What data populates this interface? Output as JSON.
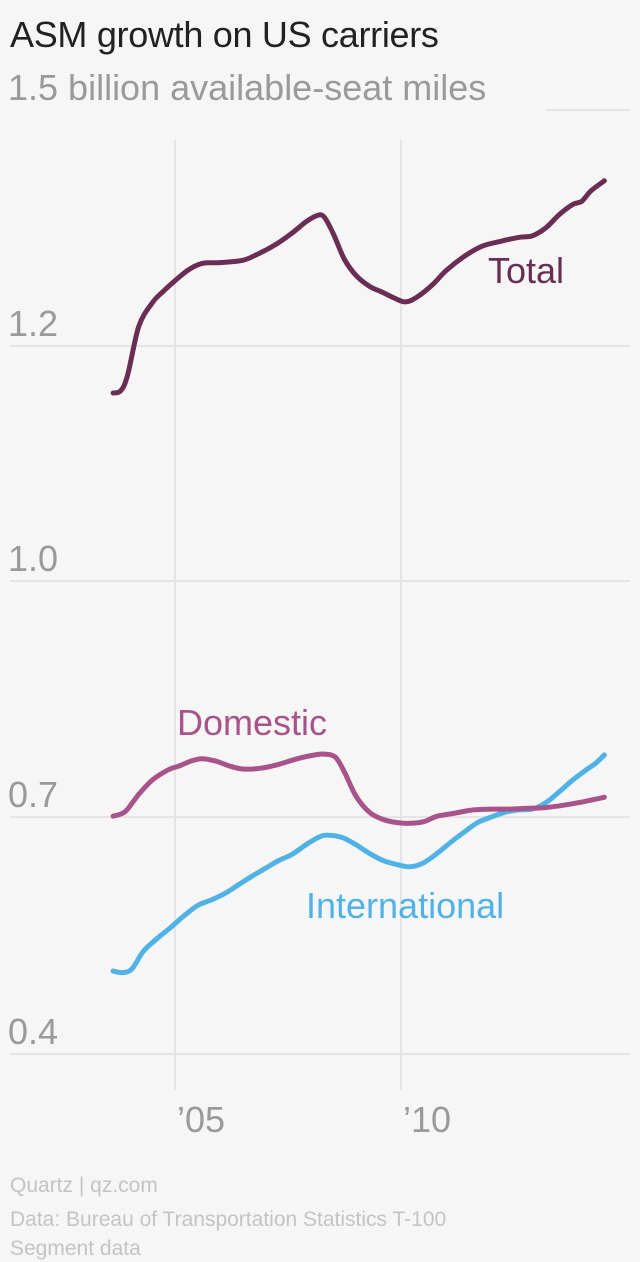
{
  "title": "ASM growth on US carriers",
  "footer": {
    "credit": "Quartz | qz.com",
    "source_line1": "Data: Bureau of Transportation Statistics T-100",
    "source_line2": "Segment data"
  },
  "colors": {
    "total": "#6a2e55",
    "domestic": "#a8548a",
    "international": "#51b2e5",
    "grid": "#e4e4e4",
    "axis_text": "#9a9a9a"
  },
  "chart_data": {
    "type": "line",
    "title": "ASM growth on US carriers",
    "ylabel": "",
    "xlabel": "",
    "y_ticks": [
      {
        "value": 0.4,
        "label": "0.4"
      },
      {
        "value": 0.7,
        "label": "0.7"
      },
      {
        "value": 1.0,
        "label": "1.0"
      },
      {
        "value": 1.2,
        "label": "1.2"
      },
      {
        "value": 1.5,
        "label": "1.5 billion available-seat miles"
      }
    ],
    "x_ticks": [
      {
        "value": 2005,
        "label": "’05"
      },
      {
        "value": 2010,
        "label": "’10"
      }
    ],
    "xlim": [
      2003.4,
      2014.7
    ],
    "grid": true,
    "series": [
      {
        "name": "Total",
        "color": "#6a2e55",
        "points": [
          [
            2003.63,
            1.16
          ],
          [
            2003.8,
            1.162
          ],
          [
            2003.95,
            1.175
          ],
          [
            2004.2,
            1.225
          ],
          [
            2004.5,
            1.255
          ],
          [
            2004.75,
            1.27
          ],
          [
            2005.0,
            1.283
          ],
          [
            2005.3,
            1.297
          ],
          [
            2005.6,
            1.305
          ],
          [
            2006.0,
            1.306
          ],
          [
            2006.5,
            1.309
          ],
          [
            2006.8,
            1.316
          ],
          [
            2007.2,
            1.328
          ],
          [
            2007.6,
            1.344
          ],
          [
            2007.9,
            1.358
          ],
          [
            2008.15,
            1.366
          ],
          [
            2008.3,
            1.364
          ],
          [
            2008.5,
            1.343
          ],
          [
            2008.75,
            1.31
          ],
          [
            2009.0,
            1.29
          ],
          [
            2009.3,
            1.276
          ],
          [
            2009.6,
            1.268
          ],
          [
            2009.85,
            1.261
          ],
          [
            2010.1,
            1.256
          ],
          [
            2010.35,
            1.262
          ],
          [
            2010.7,
            1.278
          ],
          [
            2011.0,
            1.296
          ],
          [
            2011.4,
            1.314
          ],
          [
            2011.8,
            1.327
          ],
          [
            2012.2,
            1.333
          ],
          [
            2012.6,
            1.338
          ],
          [
            2012.9,
            1.34
          ],
          [
            2013.2,
            1.35
          ],
          [
            2013.5,
            1.367
          ],
          [
            2013.8,
            1.38
          ],
          [
            2014.0,
            1.384
          ],
          [
            2014.2,
            1.397
          ],
          [
            2014.5,
            1.41
          ]
        ],
        "label_text": "Total"
      },
      {
        "name": "Domestic",
        "color": "#a8548a",
        "points": [
          [
            2003.63,
            0.701
          ],
          [
            2003.9,
            0.707
          ],
          [
            2004.2,
            0.729
          ],
          [
            2004.5,
            0.747
          ],
          [
            2004.85,
            0.76
          ],
          [
            2005.1,
            0.765
          ],
          [
            2005.35,
            0.771
          ],
          [
            2005.6,
            0.774
          ],
          [
            2005.9,
            0.771
          ],
          [
            2006.2,
            0.765
          ],
          [
            2006.5,
            0.761
          ],
          [
            2006.9,
            0.762
          ],
          [
            2007.3,
            0.767
          ],
          [
            2007.7,
            0.774
          ],
          [
            2008.1,
            0.779
          ],
          [
            2008.3,
            0.78
          ],
          [
            2008.55,
            0.776
          ],
          [
            2008.75,
            0.757
          ],
          [
            2009.0,
            0.727
          ],
          [
            2009.3,
            0.706
          ],
          [
            2009.6,
            0.697
          ],
          [
            2009.9,
            0.693
          ],
          [
            2010.2,
            0.692
          ],
          [
            2010.5,
            0.694
          ],
          [
            2010.8,
            0.701
          ],
          [
            2011.2,
            0.705
          ],
          [
            2011.6,
            0.709
          ],
          [
            2012.0,
            0.71
          ],
          [
            2012.4,
            0.71
          ],
          [
            2012.8,
            0.711
          ],
          [
            2013.2,
            0.712
          ],
          [
            2013.6,
            0.715
          ],
          [
            2014.0,
            0.719
          ],
          [
            2014.5,
            0.725
          ]
        ],
        "label_text": "Domestic"
      },
      {
        "name": "International",
        "color": "#51b2e5",
        "points": [
          [
            2003.63,
            0.505
          ],
          [
            2003.85,
            0.503
          ],
          [
            2004.05,
            0.508
          ],
          [
            2004.3,
            0.53
          ],
          [
            2004.6,
            0.546
          ],
          [
            2004.9,
            0.56
          ],
          [
            2005.2,
            0.575
          ],
          [
            2005.5,
            0.588
          ],
          [
            2005.8,
            0.595
          ],
          [
            2006.1,
            0.603
          ],
          [
            2006.4,
            0.614
          ],
          [
            2006.7,
            0.625
          ],
          [
            2007.0,
            0.635
          ],
          [
            2007.3,
            0.645
          ],
          [
            2007.6,
            0.653
          ],
          [
            2007.9,
            0.665
          ],
          [
            2008.2,
            0.675
          ],
          [
            2008.4,
            0.677
          ],
          [
            2008.7,
            0.674
          ],
          [
            2009.0,
            0.665
          ],
          [
            2009.3,
            0.654
          ],
          [
            2009.6,
            0.645
          ],
          [
            2009.9,
            0.64
          ],
          [
            2010.2,
            0.637
          ],
          [
            2010.5,
            0.642
          ],
          [
            2010.8,
            0.654
          ],
          [
            2011.1,
            0.668
          ],
          [
            2011.4,
            0.681
          ],
          [
            2011.7,
            0.693
          ],
          [
            2012.0,
            0.7
          ],
          [
            2012.3,
            0.706
          ],
          [
            2012.6,
            0.709
          ],
          [
            2012.9,
            0.71
          ],
          [
            2013.2,
            0.718
          ],
          [
            2013.5,
            0.732
          ],
          [
            2013.8,
            0.747
          ],
          [
            2014.1,
            0.76
          ],
          [
            2014.3,
            0.768
          ],
          [
            2014.5,
            0.779
          ]
        ],
        "label_text": "International"
      }
    ]
  }
}
